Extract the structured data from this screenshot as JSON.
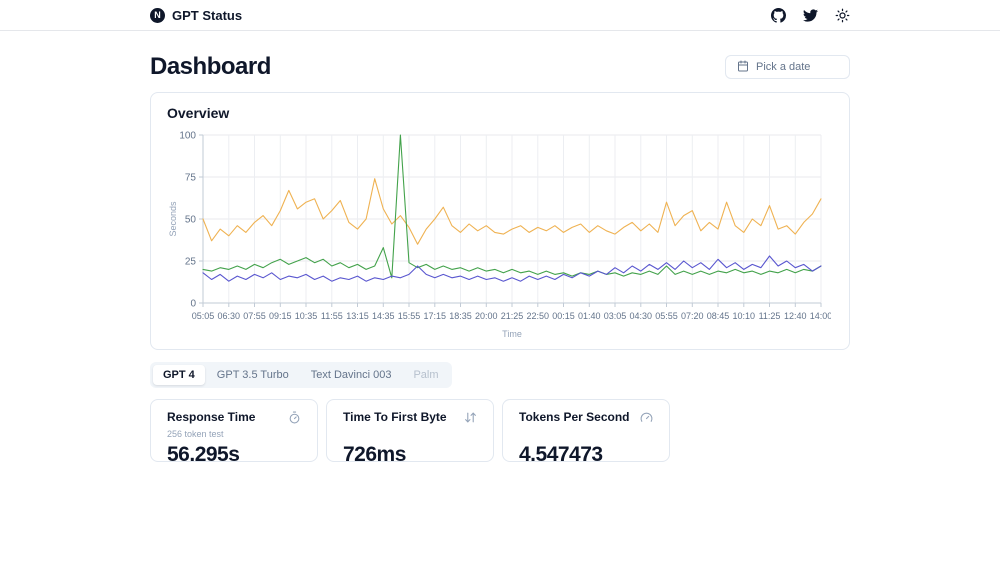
{
  "header": {
    "brand": "GPT Status",
    "logo_letter": "N"
  },
  "page": {
    "title": "Dashboard",
    "date_picker_label": "Pick a date"
  },
  "overview": {
    "title": "Overview"
  },
  "chart_data": {
    "type": "line",
    "title": "Overview",
    "xlabel": "Time",
    "ylabel": "Seconds",
    "ylim": [
      0,
      100
    ],
    "yticks": [
      0,
      25,
      50,
      75,
      100
    ],
    "grid": true,
    "legend_position": "none",
    "categories": [
      "05:05",
      "06:30",
      "07:55",
      "09:15",
      "10:35",
      "11:55",
      "13:15",
      "14:35",
      "15:55",
      "17:15",
      "18:35",
      "20:00",
      "21:25",
      "22:50",
      "00:15",
      "01:40",
      "03:05",
      "04:30",
      "05:55",
      "07:20",
      "08:45",
      "10:10",
      "11:25",
      "12:40",
      "14:00"
    ],
    "series": [
      {
        "name": "orange",
        "color": "#efb252",
        "values": [
          50,
          37,
          44,
          40,
          46,
          42,
          48,
          52,
          46,
          55,
          67,
          56,
          60,
          62,
          50,
          55,
          61,
          48,
          44,
          50,
          74,
          56,
          47,
          52,
          45,
          35,
          44,
          50,
          57,
          46,
          42,
          47,
          43,
          46,
          42,
          41,
          44,
          46,
          42,
          45,
          43,
          46,
          42,
          45,
          47,
          42,
          46,
          43,
          41,
          45,
          48,
          43,
          47,
          42,
          60,
          46,
          52,
          55,
          43,
          48,
          44,
          60,
          46,
          42,
          50,
          46,
          58,
          44,
          46,
          41,
          48,
          53,
          62
        ]
      },
      {
        "name": "green",
        "color": "#43a24b",
        "values": [
          20,
          19,
          21,
          20,
          22,
          20,
          23,
          21,
          24,
          26,
          23,
          25,
          27,
          24,
          26,
          22,
          24,
          21,
          23,
          20,
          22,
          33,
          15,
          100,
          24,
          21,
          23,
          20,
          22,
          20,
          21,
          19,
          21,
          19,
          20,
          18,
          20,
          18,
          19,
          17,
          19,
          17,
          18,
          16,
          18,
          17,
          19,
          17,
          18,
          16,
          18,
          17,
          19,
          17,
          22,
          17,
          19,
          17,
          19,
          17,
          19,
          18,
          20,
          18,
          19,
          17,
          19,
          18,
          20,
          18,
          20,
          19,
          22
        ]
      },
      {
        "name": "indigo",
        "color": "#5956cf",
        "values": [
          18,
          14,
          17,
          13,
          16,
          14,
          17,
          15,
          18,
          14,
          16,
          15,
          17,
          14,
          16,
          13,
          15,
          14,
          16,
          13,
          15,
          14,
          16,
          15,
          17,
          22,
          17,
          15,
          17,
          15,
          16,
          14,
          16,
          14,
          15,
          13,
          15,
          13,
          16,
          14,
          16,
          14,
          17,
          15,
          18,
          16,
          19,
          17,
          21,
          18,
          22,
          19,
          23,
          20,
          24,
          20,
          25,
          21,
          24,
          20,
          26,
          21,
          24,
          20,
          23,
          21,
          28,
          22,
          25,
          21,
          23,
          19,
          22
        ]
      }
    ]
  },
  "tabs": [
    {
      "label": "GPT 4"
    },
    {
      "label": "GPT 3.5 Turbo"
    },
    {
      "label": "Text Davinci 003"
    },
    {
      "label": "Palm"
    }
  ],
  "stats": [
    {
      "title": "Response Time",
      "subtitle": "256 token test",
      "value": "56.295s"
    },
    {
      "title": "Time To First Byte",
      "subtitle": "",
      "value": "726ms"
    },
    {
      "title": "Tokens Per Second",
      "subtitle": "",
      "value": "4.547473"
    }
  ]
}
